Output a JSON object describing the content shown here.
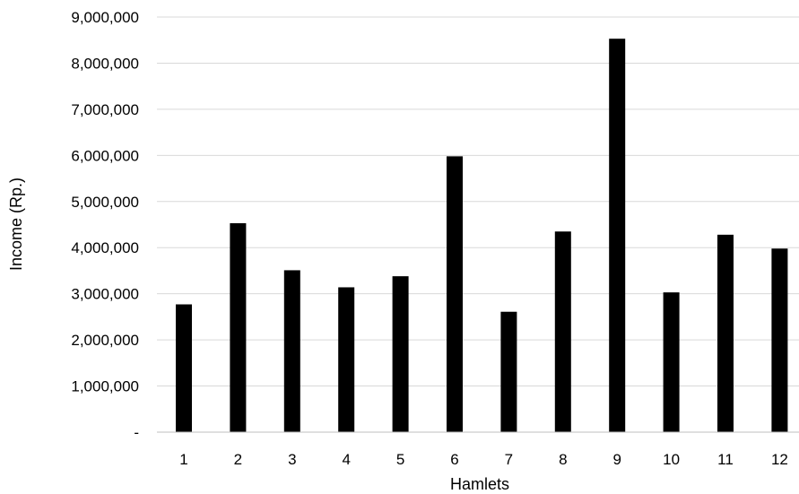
{
  "chart_data": {
    "type": "bar",
    "xlabel": "Hamlets",
    "ylabel": "Income (Rp.)",
    "categories": [
      "1",
      "2",
      "3",
      "4",
      "5",
      "6",
      "7",
      "8",
      "9",
      "10",
      "11",
      "12"
    ],
    "values": [
      2770000,
      4530000,
      3510000,
      3140000,
      3380000,
      5980000,
      2610000,
      4350000,
      8530000,
      3030000,
      4280000,
      3980000
    ],
    "ylim": [
      0,
      9000000
    ],
    "yticks": [
      0,
      1000000,
      2000000,
      3000000,
      4000000,
      5000000,
      6000000,
      7000000,
      8000000,
      9000000
    ],
    "ytick_labels": [
      "-",
      "1,000,000",
      "2,000,000",
      "3,000,000",
      "4,000,000",
      "5,000,000",
      "6,000,000",
      "7,000,000",
      "8,000,000",
      "9,000,000"
    ],
    "grid": true,
    "legend": "none",
    "colors": {
      "bar": "#000000",
      "grid": "#d9d9d9",
      "axis": "#bfbfbf"
    }
  }
}
